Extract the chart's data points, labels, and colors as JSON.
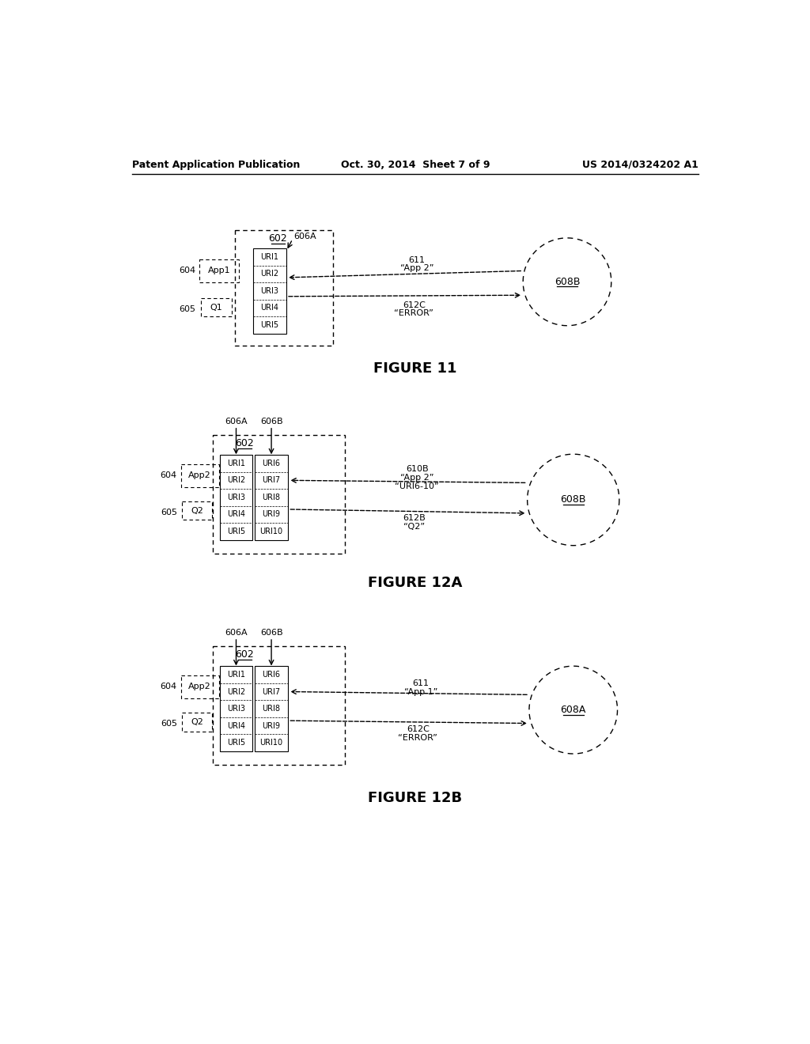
{
  "bg_color": "#ffffff",
  "text_color": "#000000",
  "header_left": "Patent Application Publication",
  "header_mid": "Oct. 30, 2014  Sheet 7 of 9",
  "header_right": "US 2014/0324202 A1",
  "figure11_label": "FIGURE 11",
  "figure12a_label": "FIGURE 12A",
  "figure12b_label": "FIGURE 12B",
  "fig11": {
    "label_602": "602",
    "label_604": "604",
    "label_605": "605",
    "label_606a": "606A",
    "app_box_label": "App1",
    "queue_box_label": "Q1",
    "uri_list_a": [
      "URI1",
      "URI2",
      "URI3",
      "URI4",
      "URI5"
    ],
    "circle_label": "608B",
    "arrow1_label1": "611",
    "arrow1_label2": "“App 2”",
    "arrow2_label1": "612C",
    "arrow2_label2": "“ERROR”"
  },
  "fig12a": {
    "label_602": "602",
    "label_604": "604",
    "label_605": "605",
    "label_606a": "606A",
    "label_606b": "606B",
    "app_box_label": "App2",
    "queue_box_label": "Q2",
    "uri_list_a": [
      "URI1",
      "URI2",
      "URI3",
      "URI4",
      "URI5"
    ],
    "uri_list_b": [
      "URI6",
      "URI7",
      "URI8",
      "URI9",
      "URI10"
    ],
    "circle_label": "608B",
    "arrow1_label1": "610B",
    "arrow1_label2": "“App 2”",
    "arrow1_label3": "“URI6-10”",
    "arrow2_label1": "612B",
    "arrow2_label2": "“Q2”"
  },
  "fig12b": {
    "label_602": "602",
    "label_604": "604",
    "label_605": "605",
    "label_606a": "606A",
    "label_606b": "606B",
    "app_box_label": "App2",
    "queue_box_label": "Q2",
    "uri_list_a": [
      "URI1",
      "URI2",
      "URI3",
      "URI4",
      "URI5"
    ],
    "uri_list_b": [
      "URI6",
      "URI7",
      "URI8",
      "URI9",
      "URI10"
    ],
    "circle_label": "608A",
    "arrow1_label1": "611",
    "arrow1_label2": "“App 1”",
    "arrow2_label1": "612C",
    "arrow2_label2": "“ERROR”"
  }
}
